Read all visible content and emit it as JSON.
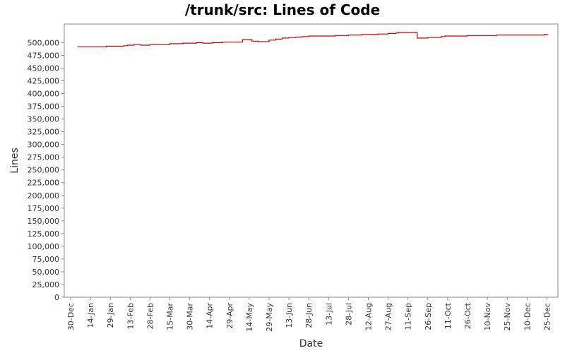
{
  "chart_data": {
    "type": "line",
    "title": "/trunk/src: Lines of Code",
    "xlabel": "Date",
    "ylabel": "Lines",
    "ylim": [
      0,
      520000
    ],
    "yticks": [
      0,
      25000,
      50000,
      75000,
      100000,
      125000,
      150000,
      175000,
      200000,
      225000,
      250000,
      275000,
      300000,
      325000,
      350000,
      375000,
      400000,
      425000,
      450000,
      475000,
      500000
    ],
    "ytick_labels": [
      "0",
      "25,000",
      "50,000",
      "75,000",
      "100,000",
      "125,000",
      "150,000",
      "175,000",
      "200,000",
      "225,000",
      "250,000",
      "275,000",
      "300,000",
      "325,000",
      "350,000",
      "375,000",
      "400,000",
      "425,000",
      "450,000",
      "475,000",
      "500,000"
    ],
    "xtick_labels": [
      "30-Dec",
      "14-Jan",
      "29-Jan",
      "13-Feb",
      "28-Feb",
      "15-Mar",
      "30-Mar",
      "14-Apr",
      "29-Apr",
      "14-May",
      "29-May",
      "13-Jun",
      "28-Jun",
      "13-Jul",
      "28-Jul",
      "12-Aug",
      "27-Aug",
      "11-Sep",
      "26-Sep",
      "11-Oct",
      "26-Oct",
      "10-Nov",
      "25-Nov",
      "10-Dec",
      "25-Dec"
    ],
    "grid": false,
    "legend": "none",
    "series": [
      {
        "color": "#cc0000",
        "x": [
          5,
          15,
          27,
          40,
          43,
          48,
          53,
          60,
          75,
          85,
          90,
          95,
          100,
          107,
          115,
          125,
          130,
          132,
          137,
          140,
          142,
          146,
          150,
          155,
          160,
          165,
          170,
          175,
          180,
          185,
          188,
          195,
          200,
          210,
          220,
          225,
          232,
          240,
          246,
          248,
          252,
          257,
          260,
          262,
          265,
          270,
          280,
          283,
          290,
          300,
          305,
          310,
          315,
          322,
          327,
          330,
          335,
          337,
          340,
          347,
          353,
          358,
          361
        ],
        "y": [
          492000,
          492000,
          493000,
          494000,
          495000,
          496000,
          495000,
          496000,
          498000,
          499000,
          499000,
          500000,
          499000,
          500000,
          501000,
          501000,
          506000,
          506000,
          503000,
          503000,
          502000,
          502000,
          505000,
          507000,
          509000,
          510000,
          511000,
          512000,
          513000,
          513000,
          513000,
          513000,
          514000,
          515000,
          516000,
          516000,
          517000,
          518000,
          519000,
          520000,
          520000,
          520000,
          520000,
          509000,
          509000,
          510000,
          512000,
          513000,
          513000,
          514000,
          514000,
          514000,
          514000,
          515000,
          515000,
          515000,
          515000,
          515000,
          515000,
          515000,
          515000,
          516000,
          516000
        ]
      }
    ]
  }
}
